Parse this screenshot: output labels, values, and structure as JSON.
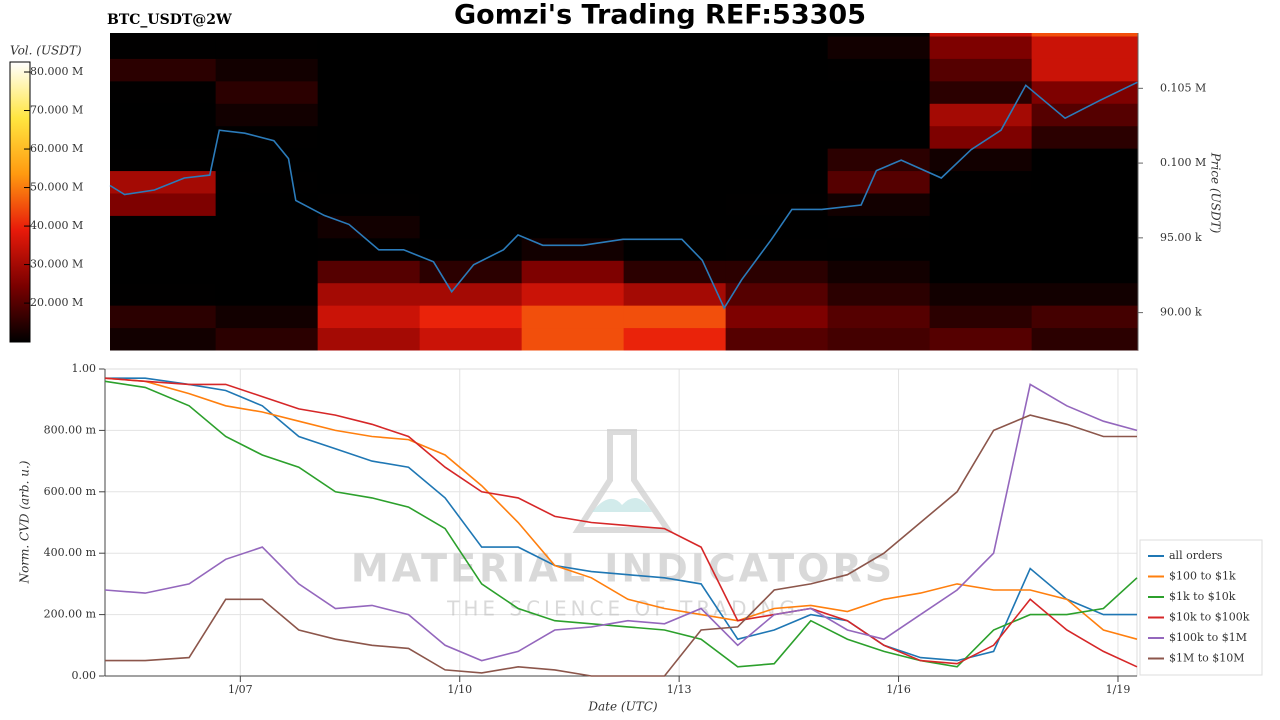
{
  "chart_data": [
    {
      "type": "heatmap",
      "title": "Gomzi's Trading REF:53305",
      "subtitle": "BTC_USDT@2W",
      "colorbar_label": "Vol. (USDT)",
      "y_label": "Price (USDT)",
      "xlim": [
        5.15,
        19.26
      ],
      "ylim": [
        87500,
        108700
      ],
      "yticks": [
        {
          "value": 90000,
          "label": "90.00 k"
        },
        {
          "value": 95000,
          "label": "95.00 k"
        },
        {
          "value": 100000,
          "label": "0.100 M"
        },
        {
          "value": 105000,
          "label": "0.105 M"
        }
      ],
      "zlim": [
        9900000,
        82600000
      ],
      "zticks": [
        {
          "value": 20000000,
          "label": "20.000 M"
        },
        {
          "value": 30000000,
          "label": "30.000 M"
        },
        {
          "value": 40000000,
          "label": "40.000 M"
        },
        {
          "value": 50000000,
          "label": "50.000 M"
        },
        {
          "value": 60000000,
          "label": "60.000 M"
        },
        {
          "value": 70000000,
          "label": "70.000 M"
        },
        {
          "value": 80000000,
          "label": "80.000 M"
        }
      ],
      "colormap": [
        "#000000",
        "#7a0000",
        "#e81a0a",
        "#ff9a10",
        "#ffe640",
        "#ffffff"
      ],
      "x_edges": [
        5.15,
        6.6,
        8.0,
        9.4,
        10.8,
        12.2,
        13.6,
        15.0,
        16.4,
        17.8,
        19.26
      ],
      "y_edges": [
        87500,
        89000,
        90500,
        92000,
        93500,
        95000,
        96500,
        98000,
        99500,
        101000,
        102500,
        104000,
        105500,
        107000,
        108500,
        108700
      ],
      "z": [
        [
          12000000.0,
          15000000.0,
          30000000.0,
          35000000.0,
          45000000.0,
          40000000.0,
          20000000.0,
          18000000.0,
          20000000.0,
          15000000.0
        ],
        [
          15000000.0,
          12000000.0,
          35000000.0,
          40000000.0,
          45000000.0,
          45000000.0,
          25000000.0,
          20000000.0,
          15000000.0,
          18000000.0
        ],
        [
          10000000.0,
          8000000.0,
          30000000.0,
          30000000.0,
          35000000.0,
          30000000.0,
          20000000.0,
          15000000.0,
          12000000.0,
          12000000.0
        ],
        [
          8000000.0,
          5000000.0,
          20000000.0,
          15000000.0,
          25000000.0,
          15000000.0,
          15000000.0,
          12000000.0,
          8000000.0,
          8000000.0
        ],
        [
          5000000.0,
          5000000.0,
          10000000.0,
          10000000.0,
          12000000.0,
          8000000.0,
          10000000.0,
          8000000.0,
          5000000.0,
          5000000.0
        ],
        [
          5000000.0,
          5000000.0,
          12000000.0,
          8000000.0,
          5000000.0,
          5000000.0,
          8000000.0,
          10000000.0,
          5000000.0,
          5000000.0
        ],
        [
          25000000.0,
          8000000.0,
          10000000.0,
          5000000.0,
          5000000.0,
          5000000.0,
          10000000.0,
          12000000.0,
          8000000.0,
          5000000.0
        ],
        [
          30000000.0,
          10000000.0,
          8000000.0,
          5000000.0,
          5000000.0,
          5000000.0,
          5000000.0,
          20000000.0,
          10000000.0,
          5000000.0
        ],
        [
          10000000.0,
          8000000.0,
          5000000.0,
          5000000.0,
          5000000.0,
          5000000.0,
          5000000.0,
          15000000.0,
          12000000.0,
          8000000.0
        ],
        [
          8000000.0,
          10000000.0,
          5000000.0,
          5000000.0,
          5000000.0,
          5000000.0,
          5000000.0,
          8000000.0,
          25000000.0,
          15000000.0
        ],
        [
          8000000.0,
          12000000.0,
          5000000.0,
          5000000.0,
          5000000.0,
          5000000.0,
          5000000.0,
          8000000.0,
          30000000.0,
          20000000.0
        ],
        [
          10000000.0,
          15000000.0,
          5000000.0,
          5000000.0,
          5000000.0,
          5000000.0,
          5000000.0,
          8000000.0,
          15000000.0,
          25000000.0
        ],
        [
          15000000.0,
          12000000.0,
          8000000.0,
          8000000.0,
          8000000.0,
          8000000.0,
          5000000.0,
          10000000.0,
          20000000.0,
          35000000.0
        ],
        [
          10000000.0,
          10000000.0,
          8000000.0,
          8000000.0,
          8000000.0,
          8000000.0,
          8000000.0,
          12000000.0,
          25000000.0,
          35000000.0
        ],
        [
          8000000.0,
          8000000.0,
          8000000.0,
          8000000.0,
          8000000.0,
          8000000.0,
          8000000.0,
          10000000.0,
          35000000.0,
          45000000.0
        ]
      ],
      "line": {
        "color": "#2b7bba",
        "x": [
          5.15,
          5.35,
          5.76,
          6.17,
          6.52,
          6.65,
          7.0,
          7.4,
          7.6,
          7.7,
          8.09,
          8.43,
          8.84,
          9.18,
          9.59,
          9.84,
          10.14,
          10.55,
          10.75,
          11.09,
          11.64,
          12.19,
          12.66,
          13.0,
          13.28,
          13.58,
          13.82,
          14.23,
          14.51,
          14.92,
          15.46,
          15.67,
          16.01,
          16.56,
          16.97,
          17.38,
          17.72,
          18.26,
          18.74,
          19.25
        ],
        "values": [
          98500,
          97900,
          98200,
          99000,
          99200,
          102200,
          102000,
          101500,
          100300,
          97500,
          96500,
          95900,
          94200,
          94200,
          93400,
          91400,
          93200,
          94200,
          95200,
          94500,
          94500,
          94900,
          94900,
          94900,
          93500,
          90300,
          92200,
          94900,
          96900,
          96900,
          97200,
          99500,
          100200,
          99000,
          100900,
          102200,
          105200,
          103000,
          104200,
          105400
        ]
      }
    },
    {
      "type": "line",
      "x_label": "Date (UTC)",
      "y_label": "Norm. CVD (arb. u.)",
      "annotations": [
        "MATERIAL INDICATORS",
        "THE SCIENCE OF TRADING"
      ],
      "xlim": [
        5.15,
        19.26
      ],
      "ylim": [
        0,
        1
      ],
      "grid": true,
      "legend": "right",
      "xticks": [
        {
          "value": 7,
          "label": "1/07"
        },
        {
          "value": 10,
          "label": "1/10"
        },
        {
          "value": 13,
          "label": "1/13"
        },
        {
          "value": 16,
          "label": "1/16"
        },
        {
          "value": 19,
          "label": "1/19"
        }
      ],
      "yticks": [
        {
          "value": 0,
          "label": "0.00"
        },
        {
          "value": 0.2,
          "label": "200.00 m"
        },
        {
          "value": 0.4,
          "label": "400.00 m"
        },
        {
          "value": 0.6,
          "label": "600.00 m"
        },
        {
          "value": 0.8,
          "label": "800.00 m"
        },
        {
          "value": 1,
          "label": "1.00"
        }
      ],
      "x": [
        5.15,
        5.7,
        6.3,
        6.8,
        7.3,
        7.8,
        8.3,
        8.8,
        9.3,
        9.8,
        10.3,
        10.8,
        11.3,
        11.8,
        12.3,
        12.8,
        13.3,
        13.8,
        14.3,
        14.8,
        15.3,
        15.8,
        16.3,
        16.8,
        17.3,
        17.8,
        18.3,
        18.8,
        19.26
      ],
      "series": [
        {
          "name": "all orders",
          "color": "#1f77b4",
          "values": [
            0.97,
            0.97,
            0.95,
            0.93,
            0.88,
            0.78,
            0.74,
            0.7,
            0.68,
            0.58,
            0.42,
            0.42,
            0.36,
            0.34,
            0.33,
            0.32,
            0.3,
            0.12,
            0.15,
            0.2,
            0.18,
            0.1,
            0.06,
            0.05,
            0.08,
            0.35,
            0.25,
            0.2,
            0.2
          ]
        },
        {
          "name": "$100 to $1k",
          "color": "#ff7f0e",
          "values": [
            0.97,
            0.96,
            0.92,
            0.88,
            0.86,
            0.83,
            0.8,
            0.78,
            0.77,
            0.72,
            0.62,
            0.5,
            0.36,
            0.32,
            0.25,
            0.22,
            0.2,
            0.18,
            0.22,
            0.23,
            0.21,
            0.25,
            0.27,
            0.3,
            0.28,
            0.28,
            0.25,
            0.15,
            0.12
          ]
        },
        {
          "name": "$1k to $10k",
          "color": "#2ca02c",
          "values": [
            0.96,
            0.94,
            0.88,
            0.78,
            0.72,
            0.68,
            0.6,
            0.58,
            0.55,
            0.48,
            0.3,
            0.22,
            0.18,
            0.17,
            0.16,
            0.15,
            0.12,
            0.03,
            0.04,
            0.18,
            0.12,
            0.08,
            0.05,
            0.03,
            0.15,
            0.2,
            0.2,
            0.22,
            0.32
          ]
        },
        {
          "name": "$10k to $100k",
          "color": "#d62728",
          "values": [
            0.97,
            0.96,
            0.95,
            0.95,
            0.91,
            0.87,
            0.85,
            0.82,
            0.78,
            0.68,
            0.6,
            0.58,
            0.52,
            0.5,
            0.49,
            0.48,
            0.42,
            0.18,
            0.2,
            0.22,
            0.18,
            0.1,
            0.05,
            0.04,
            0.1,
            0.25,
            0.15,
            0.08,
            0.03
          ]
        },
        {
          "name": "$100k to $1M",
          "color": "#9467bd",
          "values": [
            0.28,
            0.27,
            0.3,
            0.38,
            0.42,
            0.3,
            0.22,
            0.23,
            0.2,
            0.1,
            0.05,
            0.08,
            0.15,
            0.16,
            0.18,
            0.17,
            0.22,
            0.1,
            0.2,
            0.22,
            0.15,
            0.12,
            0.2,
            0.28,
            0.4,
            0.95,
            0.88,
            0.83,
            0.8
          ]
        },
        {
          "name": "$1M to $10M",
          "color": "#8c564b",
          "values": [
            0.05,
            0.05,
            0.06,
            0.25,
            0.25,
            0.15,
            0.12,
            0.1,
            0.09,
            0.02,
            0.01,
            0.03,
            0.02,
            0.0,
            0.0,
            0.0,
            0.15,
            0.16,
            0.28,
            0.3,
            0.33,
            0.4,
            0.5,
            0.6,
            0.8,
            0.85,
            0.82,
            0.78,
            0.78
          ]
        }
      ]
    }
  ]
}
